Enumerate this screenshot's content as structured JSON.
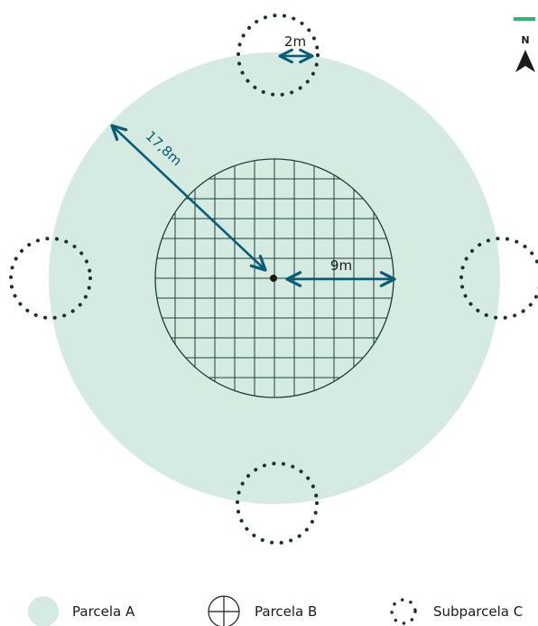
{
  "colors": {
    "plot_a_fill": "#d5ebe2",
    "grid_line": "#1f3d3a",
    "dimension": "#0b5c74",
    "subplot_dots": "#1f2f2e",
    "north_bar": "#2bb673",
    "text": "#1a1a1a"
  },
  "north": {
    "letter": "N",
    "icon": "north-arrow-icon"
  },
  "dimensions": {
    "radius_a": "17,8m",
    "radius_b": "9m",
    "radius_c": "2m"
  },
  "legend": [
    {
      "label": "Parcela A",
      "icon": "filled-circle-icon"
    },
    {
      "label": "Parcela B",
      "icon": "crosshair-circle-icon"
    },
    {
      "label": "Subparcela C",
      "icon": "dotted-circle-icon"
    }
  ]
}
